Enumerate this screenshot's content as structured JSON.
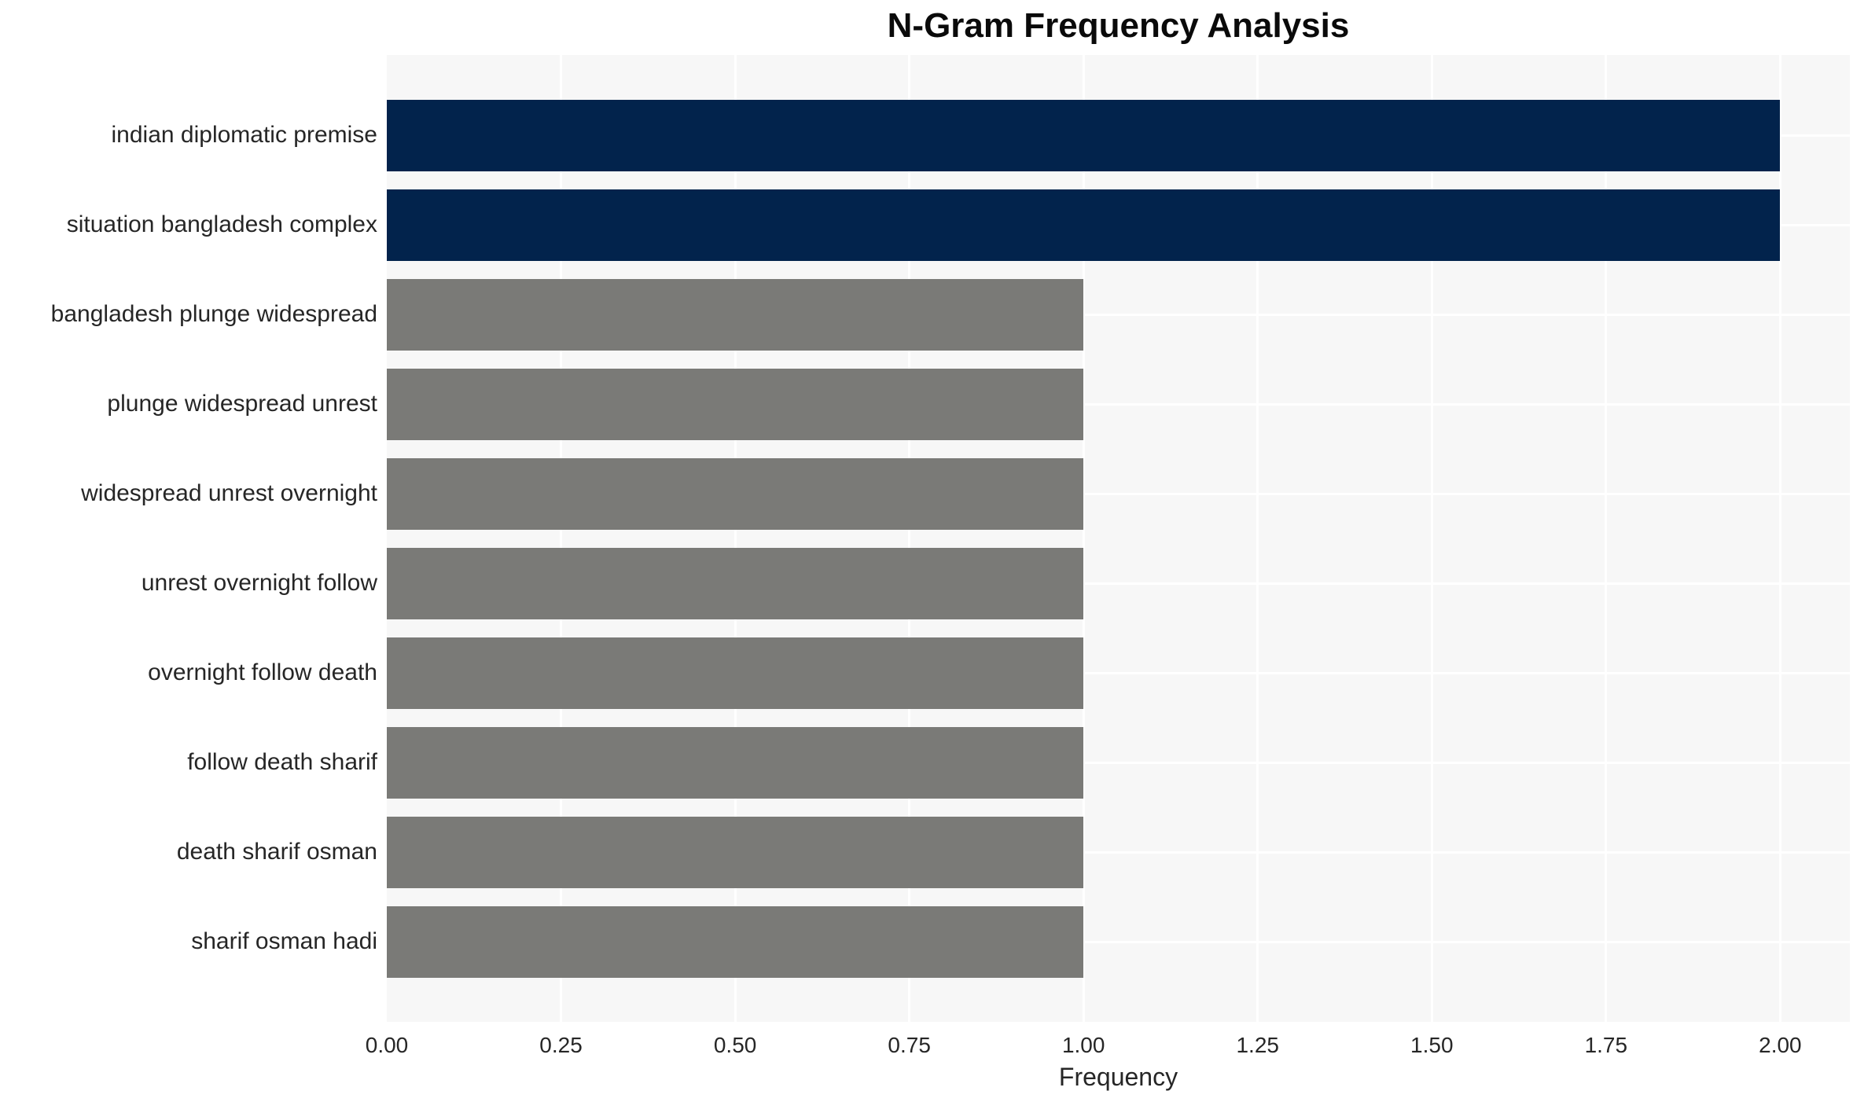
{
  "chart_data": {
    "type": "bar",
    "orientation": "horizontal",
    "title": "N-Gram Frequency Analysis",
    "xlabel": "Frequency",
    "ylabel": "",
    "categories": [
      "indian diplomatic premise",
      "situation bangladesh complex",
      "bangladesh plunge widespread",
      "plunge widespread unrest",
      "widespread unrest overnight",
      "unrest overnight follow",
      "overnight follow death",
      "follow death sharif",
      "death sharif osman",
      "sharif osman hadi"
    ],
    "values": [
      2,
      2,
      1,
      1,
      1,
      1,
      1,
      1,
      1,
      1
    ],
    "bar_colors": [
      "#02234C",
      "#02234C",
      "#7A7A77",
      "#7A7A77",
      "#7A7A77",
      "#7A7A77",
      "#7A7A77",
      "#7A7A77",
      "#7A7A77",
      "#7A7A77"
    ],
    "xlim": [
      0,
      2.1
    ],
    "xticks": [
      0,
      0.25,
      0.5,
      0.75,
      1.0,
      1.25,
      1.5,
      1.75,
      2.0
    ],
    "xtick_labels": [
      "0.00",
      "0.25",
      "0.50",
      "0.75",
      "1.00",
      "1.25",
      "1.50",
      "1.75",
      "2.00"
    ],
    "grid": "both",
    "legend": null,
    "colors": {
      "highlight_bar": "#02234C",
      "default_bar": "#7A7A77",
      "plot_background": "#F7F7F7",
      "gridline": "#FFFFFF",
      "tick_text": "#262626",
      "title_text": "#0A0A0A"
    }
  }
}
